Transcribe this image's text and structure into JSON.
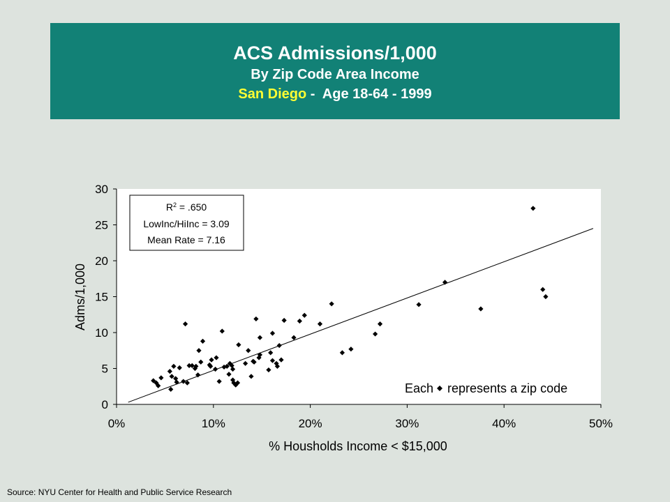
{
  "banner": {
    "title": "ACS Admissions/1,000",
    "subtitle": "By Zip Code Area Income",
    "city": "San Diego",
    "detail": " -  Age 18-64 - 1999",
    "background": "#128176",
    "city_color": "#ffff33"
  },
  "source": "Source:  NYU Center for Health and Public Service Research",
  "stats_box": {
    "r2_label": "R",
    "r2_sup": "2",
    "r2_value": " = .650",
    "line2": "LowInc/HiInc = 3.09",
    "line3": "Mean Rate = 7.16"
  },
  "note": {
    "before": "Each",
    "after": "represents a zip code"
  },
  "chart_data": {
    "type": "scatter",
    "xlabel": "% Housholds Income < $15,000",
    "ylabel": "Adms/1,000",
    "xlim": [
      0,
      50
    ],
    "ylim": [
      0,
      30
    ],
    "x_ticks": [
      "0%",
      "10%",
      "20%",
      "30%",
      "40%",
      "50%"
    ],
    "y_ticks": [
      "0",
      "5",
      "10",
      "15",
      "20",
      "25",
      "30"
    ],
    "grid": false,
    "marker": "diamond",
    "trendline": {
      "x": [
        1.2,
        49.2
      ],
      "y": [
        0.3,
        24.5
      ]
    },
    "points": [
      [
        3.8,
        3.3
      ],
      [
        4.1,
        3.0
      ],
      [
        4.3,
        2.6
      ],
      [
        4.6,
        3.7
      ],
      [
        5.5,
        4.6
      ],
      [
        5.6,
        2.1
      ],
      [
        5.7,
        3.9
      ],
      [
        5.9,
        5.3
      ],
      [
        6.1,
        3.6
      ],
      [
        6.2,
        3.1
      ],
      [
        6.5,
        5.1
      ],
      [
        6.9,
        3.2
      ],
      [
        7.1,
        11.2
      ],
      [
        7.3,
        3.0
      ],
      [
        7.5,
        5.4
      ],
      [
        7.8,
        5.4
      ],
      [
        8.1,
        5.0
      ],
      [
        8.2,
        5.3
      ],
      [
        8.4,
        4.1
      ],
      [
        8.5,
        7.5
      ],
      [
        8.7,
        5.9
      ],
      [
        8.9,
        8.8
      ],
      [
        9.6,
        5.5
      ],
      [
        9.7,
        5.3
      ],
      [
        9.8,
        6.2
      ],
      [
        10.2,
        4.9
      ],
      [
        10.3,
        6.5
      ],
      [
        10.6,
        3.2
      ],
      [
        10.9,
        10.2
      ],
      [
        11.1,
        5.2
      ],
      [
        11.4,
        5.3
      ],
      [
        11.6,
        4.2
      ],
      [
        11.7,
        5.7
      ],
      [
        11.9,
        5.4
      ],
      [
        12.0,
        4.9
      ],
      [
        12.0,
        3.4
      ],
      [
        12.1,
        3.0
      ],
      [
        12.3,
        2.7
      ],
      [
        12.5,
        3.0
      ],
      [
        12.6,
        8.3
      ],
      [
        13.3,
        5.7
      ],
      [
        13.6,
        7.5
      ],
      [
        13.9,
        3.9
      ],
      [
        14.1,
        6.0
      ],
      [
        14.2,
        5.9
      ],
      [
        14.4,
        11.9
      ],
      [
        14.7,
        6.5
      ],
      [
        14.8,
        9.3
      ],
      [
        14.8,
        6.9
      ],
      [
        15.7,
        4.8
      ],
      [
        15.9,
        7.2
      ],
      [
        16.1,
        6.1
      ],
      [
        16.1,
        9.9
      ],
      [
        16.5,
        5.7
      ],
      [
        16.6,
        5.3
      ],
      [
        16.8,
        8.2
      ],
      [
        17.0,
        6.2
      ],
      [
        17.3,
        11.7
      ],
      [
        18.3,
        9.3
      ],
      [
        18.9,
        11.6
      ],
      [
        19.4,
        12.4
      ],
      [
        21.0,
        11.2
      ],
      [
        22.2,
        14.0
      ],
      [
        23.3,
        7.2
      ],
      [
        24.2,
        7.7
      ],
      [
        26.7,
        9.8
      ],
      [
        27.2,
        11.2
      ],
      [
        31.2,
        13.9
      ],
      [
        33.9,
        17.0
      ],
      [
        37.6,
        13.3
      ],
      [
        43.0,
        27.3
      ],
      [
        44.0,
        16.0
      ],
      [
        44.3,
        15.0
      ]
    ]
  }
}
